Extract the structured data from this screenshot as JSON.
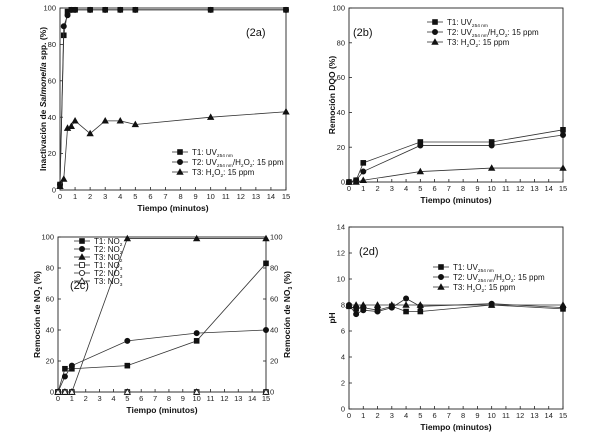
{
  "chart_data": [
    {
      "id": "2a",
      "type": "line",
      "tag": "(2a)",
      "xlabel": "Tiempo (minutos)",
      "ylabel_parts": [
        {
          "t": "Inactivación de ",
          "i": false
        },
        {
          "t": "Salmonella",
          "i": true
        },
        {
          "t": " spp. (%)",
          "i": false
        }
      ],
      "xlim": [
        0,
        15
      ],
      "ylim": [
        0,
        100
      ],
      "xticks": [
        0,
        1,
        2,
        3,
        4,
        5,
        6,
        7,
        8,
        9,
        10,
        11,
        12,
        13,
        14,
        15
      ],
      "yticks": [
        0,
        20,
        40,
        60,
        80,
        100
      ],
      "legend_position": "middle-right",
      "series": [
        {
          "name": "T1: UV254 nm",
          "name_parts": [
            {
              "t": "T1: UV"
            },
            {
              "t": "254 nm",
              "sub": true
            }
          ],
          "marker": "square",
          "x": [
            0,
            0.25,
            0.5,
            0.75,
            1,
            2,
            3,
            4,
            5,
            10,
            15
          ],
          "y": [
            3,
            85,
            98,
            99,
            99,
            99,
            99,
            99,
            99,
            99,
            99
          ]
        },
        {
          "name": "T2: UV254 nm/H2O2: 15 ppm",
          "name_parts": [
            {
              "t": "T2: UV"
            },
            {
              "t": "254 nm",
              "sub": true
            },
            {
              "t": "/H"
            },
            {
              "t": "2",
              "sub": true
            },
            {
              "t": "O"
            },
            {
              "t": "2",
              "sub": true
            },
            {
              "t": ": 15 ppm"
            }
          ],
          "marker": "circle",
          "x": [
            0,
            0.25,
            0.5,
            0.75,
            1,
            2,
            3,
            4,
            5,
            10,
            15
          ],
          "y": [
            3,
            90,
            96,
            99,
            99,
            99,
            99,
            99,
            99,
            99,
            99
          ]
        },
        {
          "name": "T3: H2O2: 15 ppm",
          "name_parts": [
            {
              "t": "T3: H"
            },
            {
              "t": "2",
              "sub": true
            },
            {
              "t": "O"
            },
            {
              "t": "2",
              "sub": true
            },
            {
              "t": ": 15 ppm"
            }
          ],
          "marker": "triangle",
          "x": [
            0,
            0.25,
            0.5,
            0.75,
            1,
            2,
            3,
            4,
            5,
            10,
            15
          ],
          "y": [
            2,
            6,
            34,
            35,
            38,
            31,
            38,
            38,
            36,
            40,
            43
          ]
        }
      ]
    },
    {
      "id": "2b",
      "type": "line",
      "tag": "(2b)",
      "xlabel": "Tiempo (minutos)",
      "ylabel_parts": [
        {
          "t": "Remoción DQO (%)",
          "i": false
        }
      ],
      "xlim": [
        0,
        15
      ],
      "ylim": [
        0,
        100
      ],
      "xticks": [
        0,
        1,
        2,
        3,
        4,
        5,
        6,
        7,
        8,
        9,
        10,
        11,
        12,
        13,
        14,
        15
      ],
      "yticks": [
        0,
        20,
        40,
        60,
        80,
        100
      ],
      "legend_position": "top-right",
      "series": [
        {
          "name": "T1: UV254 nm",
          "name_parts": [
            {
              "t": "T1: UV"
            },
            {
              "t": "254 nm",
              "sub": true
            }
          ],
          "marker": "square",
          "x": [
            0,
            0.5,
            1,
            5,
            10,
            15
          ],
          "y": [
            0,
            1,
            11,
            23,
            23,
            30
          ]
        },
        {
          "name": "T2: UV254 nm/H2O2: 15 ppm",
          "name_parts": [
            {
              "t": "T2: UV"
            },
            {
              "t": "254 nm",
              "sub": true
            },
            {
              "t": "/H"
            },
            {
              "t": "2",
              "sub": true
            },
            {
              "t": "O"
            },
            {
              "t": "2",
              "sub": true
            },
            {
              "t": ": 15 ppm"
            }
          ],
          "marker": "circle",
          "x": [
            0,
            0.5,
            1,
            5,
            10,
            15
          ],
          "y": [
            0,
            1,
            6,
            21,
            21,
            27
          ]
        },
        {
          "name": "T3: H2O2: 15 ppm",
          "name_parts": [
            {
              "t": "T3: H"
            },
            {
              "t": "2",
              "sub": true
            },
            {
              "t": "O"
            },
            {
              "t": "2",
              "sub": true
            },
            {
              "t": ": 15 ppm"
            }
          ],
          "marker": "triangle",
          "x": [
            0,
            0.5,
            1,
            5,
            10,
            15
          ],
          "y": [
            0,
            0,
            1,
            6,
            8,
            8
          ]
        }
      ]
    },
    {
      "id": "2c",
      "type": "line",
      "tag": "(2c)",
      "xlabel": "Tiempo (minutos)",
      "ylabel_parts": [
        {
          "t": "Remoción de NO"
        },
        {
          "t": "2",
          "sub": true
        },
        {
          "t": " (%)"
        }
      ],
      "ylabel_right_parts": [
        {
          "t": "Remoción de NO"
        },
        {
          "t": "3",
          "sub": true
        },
        {
          "t": " (%)"
        }
      ],
      "xlim": [
        0,
        15
      ],
      "ylim": [
        0,
        100
      ],
      "xticks": [
        0,
        1,
        2,
        3,
        4,
        5,
        6,
        7,
        8,
        9,
        10,
        11,
        12,
        13,
        14,
        15
      ],
      "yticks": [
        0,
        20,
        40,
        60,
        80,
        100
      ],
      "legend_position": "top-left",
      "series": [
        {
          "name": "T1: NO2",
          "name_parts": [
            {
              "t": "T1: NO"
            },
            {
              "t": "2",
              "sub": true
            }
          ],
          "marker": "square",
          "x": [
            0,
            0.5,
            1,
            5,
            10,
            15
          ],
          "y": [
            0,
            15,
            15,
            17,
            33,
            83
          ]
        },
        {
          "name": "T2: NO2",
          "name_parts": [
            {
              "t": "T2: NO"
            },
            {
              "t": "2",
              "sub": true
            }
          ],
          "marker": "circle",
          "x": [
            0,
            0.5,
            1,
            5,
            10,
            15
          ],
          "y": [
            0,
            10,
            17,
            33,
            38,
            40
          ]
        },
        {
          "name": "T3: NO2",
          "name_parts": [
            {
              "t": "T3: NO"
            },
            {
              "t": "2",
              "sub": true
            }
          ],
          "marker": "triangle",
          "x": [
            0,
            0.5,
            1,
            5,
            10,
            15
          ],
          "y": [
            0,
            0,
            0,
            99,
            99,
            99
          ]
        },
        {
          "name": "T1: NO3",
          "name_parts": [
            {
              "t": "T1: NO"
            },
            {
              "t": "3",
              "sub": true
            }
          ],
          "marker": "square-open",
          "x": [
            0,
            0.5,
            1,
            5,
            10,
            15
          ],
          "y": [
            0,
            0,
            0,
            0,
            0,
            0
          ]
        },
        {
          "name": "T2: NO3",
          "name_parts": [
            {
              "t": "T2: NO"
            },
            {
              "t": "3",
              "sub": true
            }
          ],
          "marker": "circle-open",
          "x": [
            0,
            0.5,
            1,
            5,
            10,
            15
          ],
          "y": [
            0,
            0,
            0,
            0,
            0,
            0
          ]
        },
        {
          "name": "T3: NO3",
          "name_parts": [
            {
              "t": "T3: NO"
            },
            {
              "t": "3",
              "sub": true
            }
          ],
          "marker": "triangle-open",
          "x": [
            0,
            0.5,
            1,
            5,
            10,
            15
          ],
          "y": [
            0,
            0,
            0,
            0,
            0,
            0
          ]
        }
      ]
    },
    {
      "id": "2d",
      "type": "line",
      "tag": "(2d)",
      "xlabel": "Tiempo (minutos)",
      "ylabel_parts": [
        {
          "t": "pH",
          "i": false
        }
      ],
      "xlim": [
        0,
        15
      ],
      "ylim": [
        0,
        14
      ],
      "xticks": [
        0,
        1,
        2,
        3,
        4,
        5,
        6,
        7,
        8,
        9,
        10,
        11,
        12,
        13,
        14,
        15
      ],
      "yticks": [
        0,
        2,
        4,
        6,
        8,
        10,
        12,
        14
      ],
      "legend_position": "top-right",
      "series": [
        {
          "name": "T1: UV254 nm",
          "name_parts": [
            {
              "t": "T1: UV"
            },
            {
              "t": "254 nm",
              "sub": true
            }
          ],
          "marker": "square",
          "x": [
            0,
            0.5,
            1,
            2,
            3,
            4,
            5,
            10,
            15
          ],
          "y": [
            7.9,
            7.7,
            7.8,
            7.6,
            7.9,
            7.5,
            7.5,
            8.0,
            7.7
          ]
        },
        {
          "name": "T2: UV254 nm/H2O2: 15 ppm",
          "name_parts": [
            {
              "t": "T2: UV"
            },
            {
              "t": "254 nm",
              "sub": true
            },
            {
              "t": "/H"
            },
            {
              "t": "2",
              "sub": true
            },
            {
              "t": "O"
            },
            {
              "t": "2",
              "sub": true
            },
            {
              "t": ": 15 ppm"
            }
          ],
          "marker": "circle",
          "x": [
            0,
            0.5,
            1,
            2,
            3,
            4,
            5,
            10,
            15
          ],
          "y": [
            8.0,
            7.3,
            7.6,
            7.5,
            7.8,
            8.5,
            7.9,
            8.1,
            7.8
          ]
        },
        {
          "name": "T3: H2O2: 15 ppm",
          "name_parts": [
            {
              "t": "T3: H"
            },
            {
              "t": "2",
              "sub": true
            },
            {
              "t": "O"
            },
            {
              "t": "2",
              "sub": true
            },
            {
              "t": ": 15 ppm"
            }
          ],
          "marker": "triangle",
          "x": [
            0,
            0.5,
            1,
            2,
            3,
            4,
            5,
            10,
            15
          ],
          "y": [
            8.0,
            8.0,
            8.0,
            8.0,
            8.0,
            8.0,
            8.0,
            8.0,
            8.0
          ]
        }
      ]
    }
  ]
}
